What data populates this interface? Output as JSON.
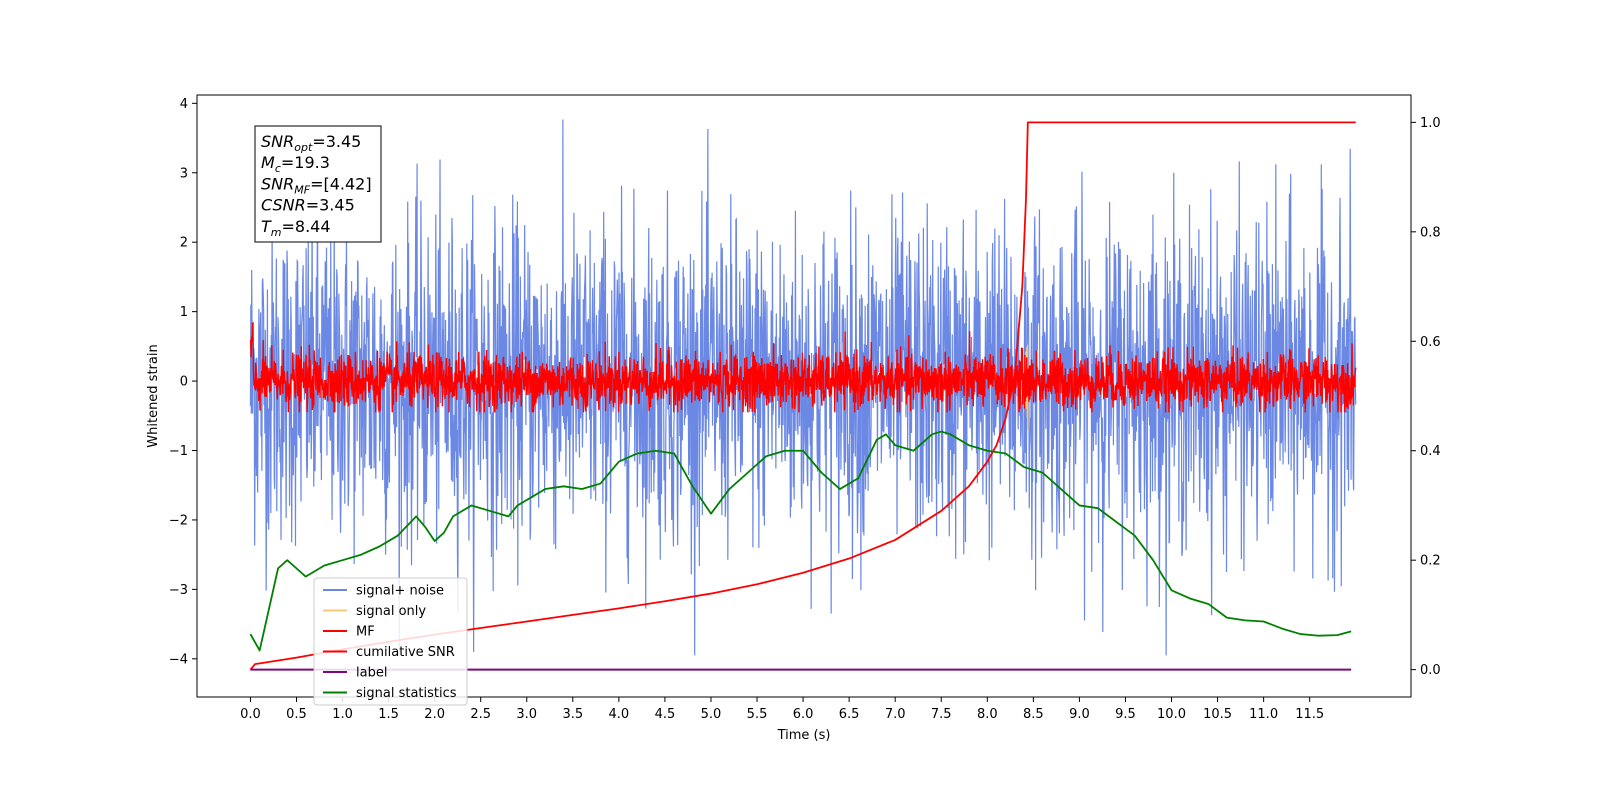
{
  "chart_data": {
    "type": "line",
    "title": "",
    "xlabel": "Time (s)",
    "ylabel": "Whitened strain",
    "xlim": [
      -0.58,
      12.6
    ],
    "ylim": [
      -4.55,
      4.12
    ],
    "y2lim": [
      -0.05,
      1.05
    ],
    "x_ticks": [
      0.0,
      0.5,
      1.0,
      1.5,
      2.0,
      2.5,
      3.0,
      3.5,
      4.0,
      4.5,
      5.0,
      5.5,
      6.0,
      6.5,
      7.0,
      7.5,
      8.0,
      8.5,
      9.0,
      9.5,
      10.0,
      10.5,
      11.0,
      11.5
    ],
    "x_tick_labels": [
      "0.0",
      "0.5",
      "1.0",
      "1.5",
      "2.0",
      "2.5",
      "3.0",
      "3.5",
      "4.0",
      "4.5",
      "5.0",
      "5.5",
      "6.0",
      "6.5",
      "7.0",
      "7.5",
      "8.0",
      "8.5",
      "9.0",
      "9.5",
      "10.0",
      "10.5",
      "11.0",
      "11.5"
    ],
    "y_ticks": [
      4,
      3,
      2,
      1,
      0,
      -1,
      -2,
      -3,
      -4
    ],
    "y_tick_labels": [
      "4",
      "3",
      "2",
      "1",
      "0",
      "−1",
      "−2",
      "−3",
      "−4"
    ],
    "y2_ticks": [
      1.0,
      0.8,
      0.6,
      0.4,
      0.2,
      0.0
    ],
    "y2_tick_labels": [
      "1.0",
      "0.8",
      "0.6",
      "0.4",
      "0.2",
      "0.0"
    ],
    "grid": false,
    "legend_position": "lower-left",
    "annotation": {
      "lines": [
        {
          "base": "SNR",
          "sub": "opt",
          "value": "=3.45"
        },
        {
          "base": "M",
          "sub": "c",
          "value": "=19.3"
        },
        {
          "base": "SNR",
          "sub": "MF",
          "value": "=[4.42]"
        },
        {
          "base": "CSNR",
          "sub": "",
          "value": "=3.45"
        },
        {
          "base": "T",
          "sub": "m",
          "value": "=8.44"
        }
      ]
    },
    "merger_time": 8.44,
    "duration": 12.0,
    "series": [
      {
        "name": "signal+ noise",
        "color": "#6a88e4",
        "axis": "left",
        "kind": "noise",
        "amplitude_range": [
          -3.95,
          3.8
        ]
      },
      {
        "name": "signal only",
        "color": "#f5c878",
        "axis": "left",
        "kind": "chirp",
        "peak": 0.6
      },
      {
        "name": "MF",
        "color": "#ff0000",
        "axis": "left",
        "kind": "noise",
        "amplitude_range": [
          -0.45,
          0.85
        ]
      },
      {
        "name": "cumilative SNR",
        "color": "#ff0000",
        "axis": "right",
        "kind": "curve",
        "x": [
          0.0,
          0.05,
          0.5,
          1.0,
          1.5,
          2.0,
          2.5,
          3.0,
          3.5,
          4.0,
          4.5,
          5.0,
          5.5,
          6.0,
          6.5,
          7.0,
          7.5,
          7.8,
          8.0,
          8.1,
          8.2,
          8.3,
          8.38,
          8.42,
          8.44,
          12.0
        ],
        "values": [
          0.0,
          0.01,
          0.022,
          0.037,
          0.051,
          0.064,
          0.076,
          0.088,
          0.1,
          0.112,
          0.125,
          0.139,
          0.156,
          0.177,
          0.203,
          0.237,
          0.29,
          0.335,
          0.38,
          0.41,
          0.46,
          0.54,
          0.7,
          0.86,
          1.0,
          1.0
        ]
      },
      {
        "name": "label",
        "color": "#7a0a7a",
        "axis": "right",
        "kind": "curve",
        "x": [
          0.0,
          11.95
        ],
        "values": [
          0.0,
          0.0
        ]
      },
      {
        "name": "signal statistics",
        "color": "#008000",
        "axis": "right",
        "kind": "curve",
        "x": [
          0.0,
          0.1,
          0.2,
          0.3,
          0.4,
          0.5,
          0.6,
          0.7,
          0.8,
          0.9,
          1.0,
          1.2,
          1.4,
          1.6,
          1.8,
          1.9,
          2.0,
          2.1,
          2.2,
          2.4,
          2.6,
          2.8,
          2.9,
          3.0,
          3.2,
          3.4,
          3.6,
          3.8,
          4.0,
          4.2,
          4.4,
          4.6,
          4.8,
          5.0,
          5.2,
          5.4,
          5.6,
          5.8,
          6.0,
          6.2,
          6.4,
          6.6,
          6.8,
          6.9,
          7.0,
          7.2,
          7.4,
          7.5,
          7.6,
          7.8,
          8.0,
          8.2,
          8.4,
          8.6,
          8.8,
          9.0,
          9.2,
          9.4,
          9.6,
          9.8,
          10.0,
          10.2,
          10.4,
          10.6,
          10.8,
          11.0,
          11.2,
          11.4,
          11.6,
          11.8,
          11.95
        ],
        "values": [
          0.065,
          0.035,
          0.11,
          0.185,
          0.2,
          0.185,
          0.17,
          0.18,
          0.19,
          0.195,
          0.2,
          0.21,
          0.225,
          0.245,
          0.28,
          0.26,
          0.235,
          0.25,
          0.28,
          0.3,
          0.29,
          0.28,
          0.3,
          0.31,
          0.33,
          0.335,
          0.33,
          0.34,
          0.38,
          0.395,
          0.4,
          0.395,
          0.335,
          0.285,
          0.33,
          0.36,
          0.39,
          0.4,
          0.4,
          0.36,
          0.33,
          0.35,
          0.42,
          0.43,
          0.41,
          0.4,
          0.43,
          0.435,
          0.43,
          0.41,
          0.4,
          0.395,
          0.37,
          0.36,
          0.33,
          0.3,
          0.295,
          0.27,
          0.245,
          0.2,
          0.145,
          0.13,
          0.12,
          0.095,
          0.09,
          0.088,
          0.075,
          0.065,
          0.062,
          0.063,
          0.07
        ]
      }
    ]
  }
}
